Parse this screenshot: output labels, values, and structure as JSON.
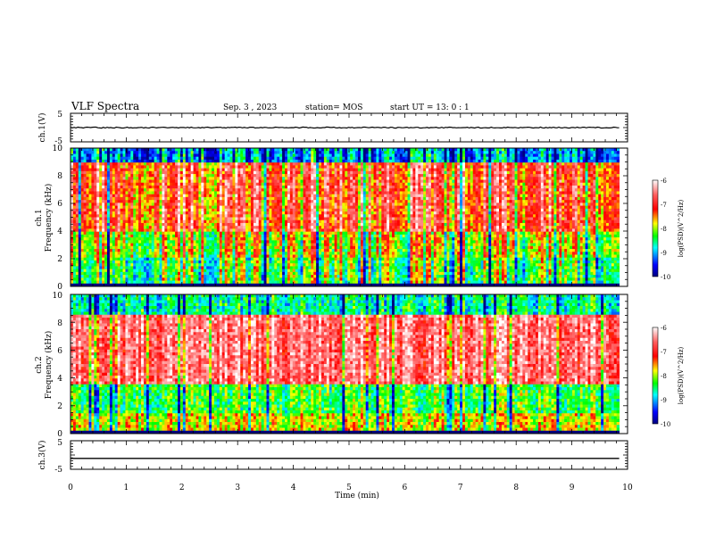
{
  "header": {
    "title": "VLF Spectra",
    "date": "Sep. 3 , 2023",
    "station": "station= MOS",
    "start": "start UT = 13: 0 : 1"
  },
  "chart_data": [
    {
      "type": "line",
      "panel": "ch1-voltage",
      "ylabel": "ch.1(V)",
      "ylim": [
        -5,
        5
      ],
      "y_ticks": [
        "5",
        "-5"
      ],
      "series": [
        {
          "values": [
            0.0,
            0.0,
            0.0,
            0.0,
            0.0,
            0.0,
            0.0,
            0.0,
            0.0,
            0.0,
            0.0
          ]
        }
      ],
      "x": [
        0,
        1,
        2,
        3,
        4,
        5,
        6,
        7,
        8,
        9,
        9.85
      ]
    },
    {
      "type": "heatmap",
      "panel": "ch1-spectrogram",
      "ylabel": "Frequency (kHz)",
      "channel_label": "ch.1",
      "ylim": [
        0,
        10
      ],
      "y_ticks": [
        "0",
        "2",
        "4",
        "6",
        "8",
        "10"
      ],
      "colorbar": {
        "label": "log(PSD)(V^2/Hz)",
        "min": -10,
        "max": -6,
        "ticks": [
          "-6",
          "-7",
          "-8",
          "-9",
          "-10"
        ]
      },
      "x_minutes": [
        0,
        9.85
      ],
      "band_log_psd": [
        {
          "f_khz": [
            0,
            0.3
          ],
          "level": -10
        },
        {
          "f_khz": [
            0.3,
            2
          ],
          "level": -8.2
        },
        {
          "f_khz": [
            2,
            4
          ],
          "level": -7.8
        },
        {
          "f_khz": [
            4,
            9
          ],
          "level": -7.0
        },
        {
          "f_khz": [
            9,
            10
          ],
          "level": -9.0
        }
      ]
    },
    {
      "type": "heatmap",
      "panel": "ch2-spectrogram",
      "ylabel": "Frequency (kHz)",
      "channel_label": "ch.2",
      "ylim": [
        0,
        10
      ],
      "y_ticks": [
        "0",
        "2",
        "4",
        "6",
        "8",
        "10"
      ],
      "colorbar": {
        "label": "log(PSD)(V^2/Hz)",
        "min": -10,
        "max": -6,
        "ticks": [
          "-6",
          "-7",
          "-8",
          "-9",
          "-10"
        ]
      },
      "x_minutes": [
        0,
        9.85
      ],
      "band_log_psd": [
        {
          "f_khz": [
            0,
            0.3
          ],
          "level": -10
        },
        {
          "f_khz": [
            0.3,
            1.5
          ],
          "level": -7.8
        },
        {
          "f_khz": [
            1.5,
            3.5
          ],
          "level": -8.3
        },
        {
          "f_khz": [
            3.5,
            8.5
          ],
          "level": -6.6
        },
        {
          "f_khz": [
            8.5,
            10
          ],
          "level": -8.6
        }
      ]
    },
    {
      "type": "line",
      "panel": "ch3-voltage",
      "ylabel": "ch.3(V)",
      "ylim": [
        -5,
        5
      ],
      "y_ticks": [
        "5",
        "-5"
      ],
      "series": [
        {
          "values": [
            -1.2,
            -1.2,
            -1.2,
            -1.2,
            -1.2,
            -1.2,
            -1.2,
            -1.2,
            -1.2,
            -1.2,
            -1.2
          ]
        }
      ],
      "x": [
        0,
        1,
        2,
        3,
        4,
        5,
        6,
        7,
        8,
        9,
        9.85
      ]
    }
  ],
  "xaxis": {
    "label": "Time (min)",
    "range": [
      0,
      10
    ],
    "ticks": [
      "0",
      "1",
      "2",
      "3",
      "4",
      "5",
      "6",
      "7",
      "8",
      "9",
      "10"
    ]
  },
  "colors": {
    "colormap": [
      "#000080",
      "#0000ff",
      "#00ffff",
      "#00ff00",
      "#ffff00",
      "#ff0000",
      "#ffffff"
    ]
  }
}
